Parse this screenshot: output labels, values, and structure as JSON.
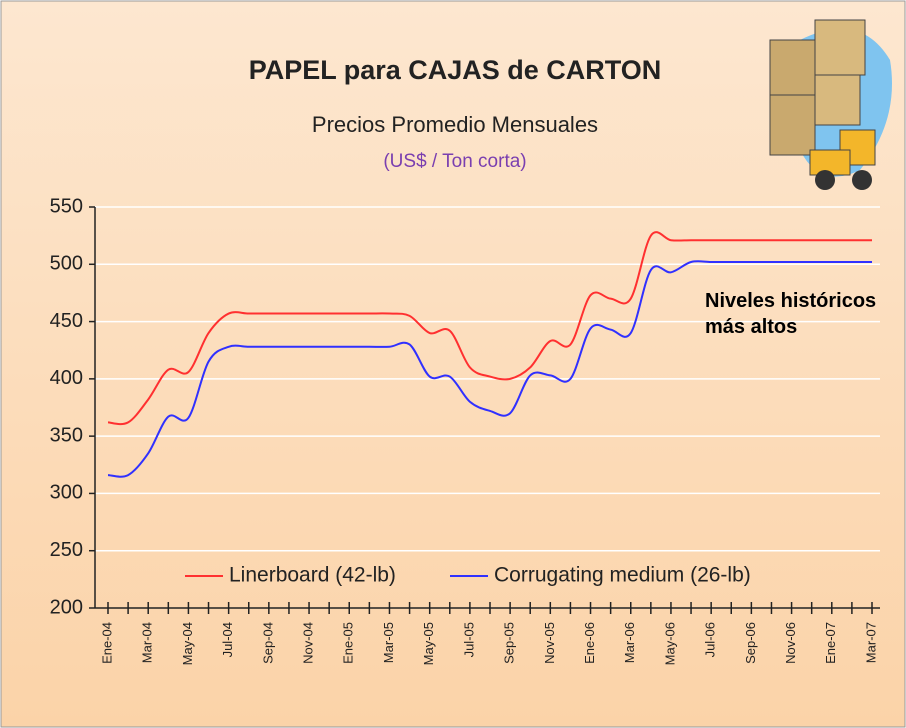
{
  "chart_data": {
    "type": "line",
    "title": "PAPEL para CAJAS de CARTON",
    "subtitle": "Precios Promedio Mensuales",
    "y_label": "(US$ / Ton corta)",
    "annotation": "Niveles históricos más altos",
    "categories": [
      "Ene-04",
      null,
      "Mar-04",
      null,
      "May-04",
      null,
      "Jul-04",
      null,
      "Sep-04",
      null,
      "Nov-04",
      null,
      "Ene-05",
      null,
      "Mar-05",
      null,
      "May-05",
      null,
      "Jul-05",
      null,
      "Sep-05",
      null,
      "Nov-05",
      null,
      "Ene-06",
      null,
      "Mar-06",
      null,
      "May-06",
      null,
      "Jul-06",
      null,
      "Sep-06",
      null,
      "Nov-06",
      null,
      "Ene-07",
      null,
      "Mar-07"
    ],
    "series": [
      {
        "name": "Linerboard (42-lb)",
        "color": "#ff3030",
        "values": [
          362,
          362,
          382,
          408,
          406,
          440,
          457,
          457,
          457,
          457,
          457,
          457,
          457,
          457,
          457,
          455,
          440,
          442,
          410,
          402,
          400,
          410,
          433,
          430,
          473,
          470,
          470,
          525,
          521,
          521,
          521,
          521,
          521,
          521,
          521,
          521,
          521,
          521,
          521
        ]
      },
      {
        "name": "Corrugating medium (26-lb)",
        "color": "#3030ff",
        "values": [
          316,
          316,
          335,
          367,
          366,
          415,
          428,
          428,
          428,
          428,
          428,
          428,
          428,
          428,
          428,
          430,
          402,
          402,
          380,
          372,
          370,
          403,
          403,
          400,
          444,
          443,
          440,
          495,
          493,
          502,
          502,
          502,
          502,
          502,
          502,
          502,
          502,
          502,
          502
        ]
      }
    ],
    "ylim": [
      200,
      550
    ],
    "yticks": [
      200,
      250,
      300,
      350,
      400,
      450,
      500,
      550
    ],
    "grid": true
  }
}
